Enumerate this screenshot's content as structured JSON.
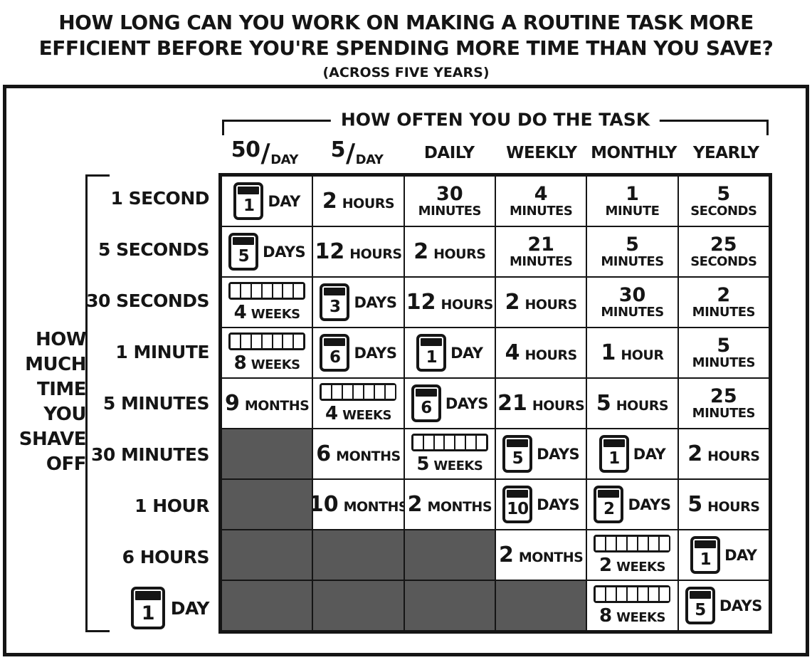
{
  "title": {
    "line1": "HOW LONG CAN YOU WORK ON MAKING A ROUTINE TASK MORE",
    "line2": "EFFICIENT BEFORE YOU'RE SPENDING MORE TIME THAN YOU SAVE?",
    "subtitle": "(ACROSS FIVE YEARS)"
  },
  "axis": {
    "columns_title": "HOW OFTEN YOU DO THE TASK",
    "rows_title_lines": [
      "HOW",
      "MUCH",
      "TIME",
      "YOU",
      "SHAVE",
      "OFF"
    ],
    "fraction_slash": "/"
  },
  "colors": {
    "ink": "#151515",
    "blocked_cell_gray": "#595959",
    "paper": "#ffffff"
  },
  "chart_data": {
    "type": "table",
    "title": "HOW LONG CAN YOU WORK ON MAKING A ROUTINE TASK MORE EFFICIENT BEFORE YOU'RE SPENDING MORE TIME THAN YOU SAVE? (ACROSS FIVE YEARS)",
    "x_axis_title": "HOW OFTEN YOU DO THE TASK",
    "y_axis_title": "HOW MUCH TIME YOU SHAVE OFF",
    "columns": [
      {
        "label": "50/DAY",
        "fraction": {
          "num": "50",
          "den": "DAY"
        }
      },
      {
        "label": "5/DAY",
        "fraction": {
          "num": "5",
          "den": "DAY"
        }
      },
      {
        "label": "DAILY"
      },
      {
        "label": "WEEKLY"
      },
      {
        "label": "MONTHLY"
      },
      {
        "label": "YEARLY"
      }
    ],
    "rows": [
      {
        "label": "1 SECOND",
        "cells": [
          {
            "style": "calendar",
            "num": "1",
            "unit": "DAY"
          },
          {
            "style": "text",
            "num": "2",
            "unit": "HOURS",
            "wrap": false
          },
          {
            "style": "text",
            "num": "30",
            "unit": "MINUTES",
            "wrap": true
          },
          {
            "style": "text",
            "num": "4",
            "unit": "MINUTES",
            "wrap": true
          },
          {
            "style": "text",
            "num": "1",
            "unit": "MINUTE",
            "wrap": true
          },
          {
            "style": "text",
            "num": "5",
            "unit": "SECONDS",
            "wrap": true
          }
        ]
      },
      {
        "label": "5 SECONDS",
        "cells": [
          {
            "style": "calendar",
            "num": "5",
            "unit": "DAYS"
          },
          {
            "style": "text",
            "num": "12",
            "unit": "HOURS",
            "wrap": false
          },
          {
            "style": "text",
            "num": "2",
            "unit": "HOURS",
            "wrap": false
          },
          {
            "style": "text",
            "num": "21",
            "unit": "MINUTES",
            "wrap": true
          },
          {
            "style": "text",
            "num": "5",
            "unit": "MINUTES",
            "wrap": true
          },
          {
            "style": "text",
            "num": "25",
            "unit": "SECONDS",
            "wrap": true
          }
        ]
      },
      {
        "label": "30 SECONDS",
        "cells": [
          {
            "style": "weeks",
            "num": "4",
            "unit": "WEEKS"
          },
          {
            "style": "calendar",
            "num": "3",
            "unit": "DAYS"
          },
          {
            "style": "text",
            "num": "12",
            "unit": "HOURS",
            "wrap": false
          },
          {
            "style": "text",
            "num": "2",
            "unit": "HOURS",
            "wrap": false
          },
          {
            "style": "text",
            "num": "30",
            "unit": "MINUTES",
            "wrap": true
          },
          {
            "style": "text",
            "num": "2",
            "unit": "MINUTES",
            "wrap": true
          }
        ]
      },
      {
        "label": "1 MINUTE",
        "cells": [
          {
            "style": "weeks",
            "num": "8",
            "unit": "WEEKS"
          },
          {
            "style": "calendar",
            "num": "6",
            "unit": "DAYS"
          },
          {
            "style": "calendar",
            "num": "1",
            "unit": "DAY"
          },
          {
            "style": "text",
            "num": "4",
            "unit": "HOURS",
            "wrap": false
          },
          {
            "style": "text",
            "num": "1",
            "unit": "HOUR",
            "wrap": false
          },
          {
            "style": "text",
            "num": "5",
            "unit": "MINUTES",
            "wrap": true
          }
        ]
      },
      {
        "label": "5 MINUTES",
        "cells": [
          {
            "style": "text",
            "num": "9",
            "unit": "MONTHS",
            "wrap": false
          },
          {
            "style": "weeks",
            "num": "4",
            "unit": "WEEKS"
          },
          {
            "style": "calendar",
            "num": "6",
            "unit": "DAYS"
          },
          {
            "style": "text",
            "num": "21",
            "unit": "HOURS",
            "wrap": false
          },
          {
            "style": "text",
            "num": "5",
            "unit": "HOURS",
            "wrap": false
          },
          {
            "style": "text",
            "num": "25",
            "unit": "MINUTES",
            "wrap": true
          }
        ]
      },
      {
        "label": "30 MINUTES",
        "cells": [
          {
            "style": "gray"
          },
          {
            "style": "text",
            "num": "6",
            "unit": "MONTHS",
            "wrap": false
          },
          {
            "style": "weeks",
            "num": "5",
            "unit": "WEEKS"
          },
          {
            "style": "calendar",
            "num": "5",
            "unit": "DAYS"
          },
          {
            "style": "calendar",
            "num": "1",
            "unit": "DAY"
          },
          {
            "style": "text",
            "num": "2",
            "unit": "HOURS",
            "wrap": false
          }
        ]
      },
      {
        "label": "1 HOUR",
        "cells": [
          {
            "style": "gray"
          },
          {
            "style": "text",
            "num": "10",
            "unit": "MONTHS",
            "wrap": false
          },
          {
            "style": "text",
            "num": "2",
            "unit": "MONTHS",
            "wrap": false
          },
          {
            "style": "calendar",
            "num": "10",
            "unit": "DAYS"
          },
          {
            "style": "calendar",
            "num": "2",
            "unit": "DAYS"
          },
          {
            "style": "text",
            "num": "5",
            "unit": "HOURS",
            "wrap": false
          }
        ]
      },
      {
        "label": "6 HOURS",
        "cells": [
          {
            "style": "gray"
          },
          {
            "style": "gray"
          },
          {
            "style": "gray"
          },
          {
            "style": "text",
            "num": "2",
            "unit": "MONTHS",
            "wrap": false
          },
          {
            "style": "weeks",
            "num": "2",
            "unit": "WEEKS"
          },
          {
            "style": "calendar",
            "num": "1",
            "unit": "DAY"
          }
        ]
      },
      {
        "label": "1 DAY",
        "label_icon": "calendar",
        "label_num": "1",
        "label_unit": "DAY",
        "cells": [
          {
            "style": "gray"
          },
          {
            "style": "gray"
          },
          {
            "style": "gray"
          },
          {
            "style": "gray"
          },
          {
            "style": "weeks",
            "num": "8",
            "unit": "WEEKS"
          },
          {
            "style": "calendar",
            "num": "5",
            "unit": "DAYS"
          }
        ]
      }
    ]
  }
}
